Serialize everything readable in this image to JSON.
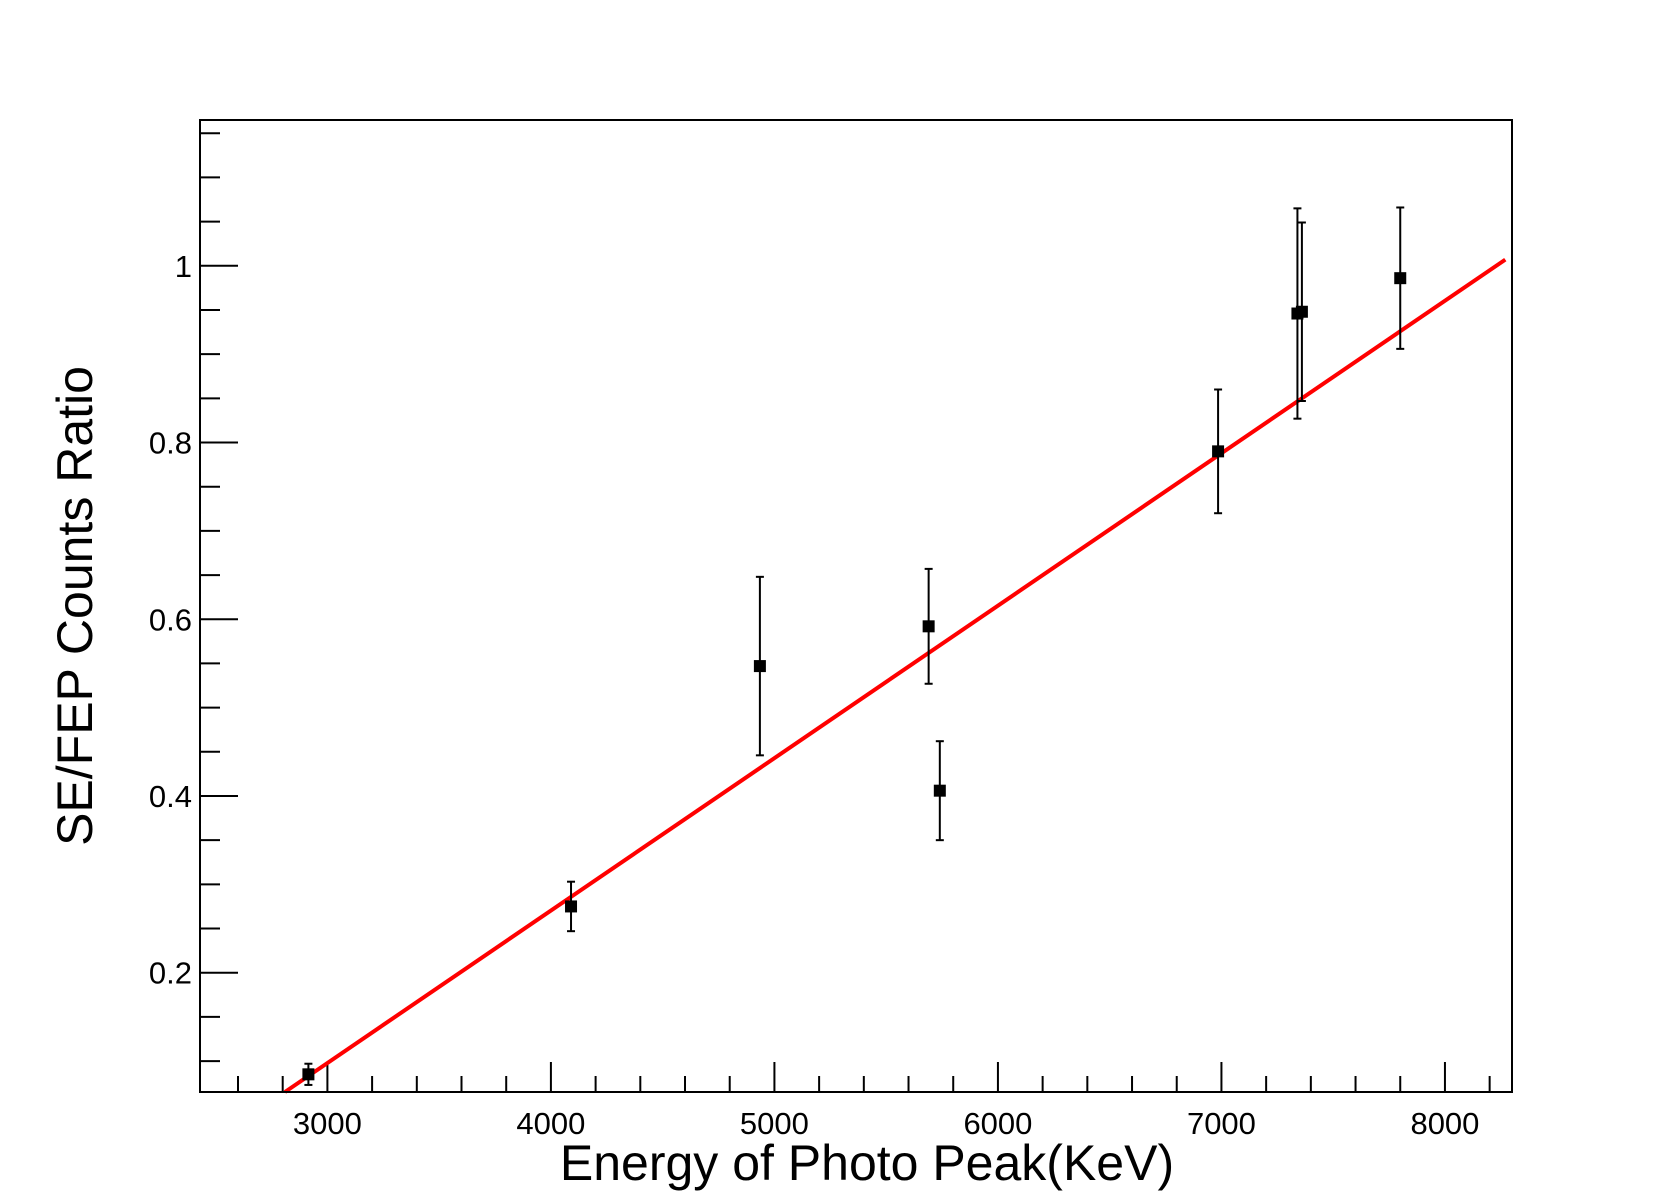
{
  "chart_data": {
    "type": "scatter",
    "title": "",
    "xlabel": "Energy of Photo Peak(KeV)",
    "ylabel": "SE/FEP Counts Ratio",
    "xlim": [
      2430,
      8300
    ],
    "ylim": [
      0.065,
      1.165
    ],
    "xticks": [
      3000,
      4000,
      5000,
      6000,
      7000,
      8000
    ],
    "xtick_labels": [
      "3000",
      "4000",
      "5000",
      "6000",
      "7000",
      "8000"
    ],
    "x_minor_step": 200,
    "yticks": [
      0.2,
      0.4,
      0.6,
      0.8,
      1.0
    ],
    "ytick_labels": [
      "0.2",
      "0.4",
      "0.6",
      "0.8",
      "1"
    ],
    "y_minor_step": 0.05,
    "grid": false,
    "legend": "none",
    "marker_color": "#000000",
    "fit_color": "#ff0000",
    "series": [
      {
        "points": [
          {
            "x": 2915,
            "y": 0.085,
            "err": 0.012
          },
          {
            "x": 4090,
            "y": 0.275,
            "err": 0.028
          },
          {
            "x": 4935,
            "y": 0.547,
            "err": 0.101
          },
          {
            "x": 5690,
            "y": 0.592,
            "err": 0.065
          },
          {
            "x": 5740,
            "y": 0.406,
            "err": 0.056
          },
          {
            "x": 6985,
            "y": 0.79,
            "err": 0.07
          },
          {
            "x": 7340,
            "y": 0.946,
            "err": 0.119
          },
          {
            "x": 7360,
            "y": 0.948,
            "err": 0.101
          },
          {
            "x": 7800,
            "y": 0.986,
            "err": 0.08
          }
        ]
      }
    ],
    "fit_line": {
      "x": [
        2810,
        8270
      ],
      "y": [
        0.065,
        1.007
      ]
    }
  }
}
